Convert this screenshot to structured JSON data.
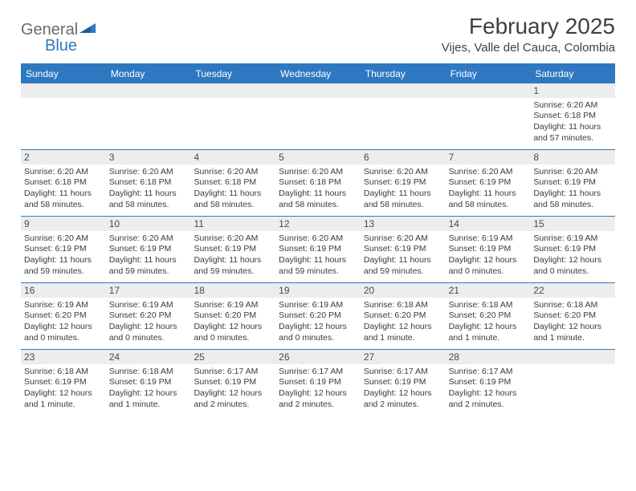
{
  "logo": {
    "word1": "General",
    "word2": "Blue"
  },
  "title": "February 2025",
  "location": "Vijes, Valle del Cauca, Colombia",
  "colors": {
    "brand_blue": "#2e78c2",
    "header_gray": "#ededed",
    "text": "#3a3a3a",
    "title_text": "#404040",
    "logo_gray": "#6b6b6b",
    "background": "#ffffff"
  },
  "typography": {
    "title_fontsize": 28,
    "location_fontsize": 15,
    "weekday_fontsize": 12,
    "daynum_fontsize": 12,
    "body_fontsize": 10.5
  },
  "weekdays": [
    "Sunday",
    "Monday",
    "Tuesday",
    "Wednesday",
    "Thursday",
    "Friday",
    "Saturday"
  ],
  "cells": [
    {
      "day": "",
      "sunrise": "",
      "sunset": "",
      "daylight": ""
    },
    {
      "day": "",
      "sunrise": "",
      "sunset": "",
      "daylight": ""
    },
    {
      "day": "",
      "sunrise": "",
      "sunset": "",
      "daylight": ""
    },
    {
      "day": "",
      "sunrise": "",
      "sunset": "",
      "daylight": ""
    },
    {
      "day": "",
      "sunrise": "",
      "sunset": "",
      "daylight": ""
    },
    {
      "day": "",
      "sunrise": "",
      "sunset": "",
      "daylight": ""
    },
    {
      "day": "1",
      "sunrise": "Sunrise: 6:20 AM",
      "sunset": "Sunset: 6:18 PM",
      "daylight": "Daylight: 11 hours and 57 minutes."
    },
    {
      "day": "2",
      "sunrise": "Sunrise: 6:20 AM",
      "sunset": "Sunset: 6:18 PM",
      "daylight": "Daylight: 11 hours and 58 minutes."
    },
    {
      "day": "3",
      "sunrise": "Sunrise: 6:20 AM",
      "sunset": "Sunset: 6:18 PM",
      "daylight": "Daylight: 11 hours and 58 minutes."
    },
    {
      "day": "4",
      "sunrise": "Sunrise: 6:20 AM",
      "sunset": "Sunset: 6:18 PM",
      "daylight": "Daylight: 11 hours and 58 minutes."
    },
    {
      "day": "5",
      "sunrise": "Sunrise: 6:20 AM",
      "sunset": "Sunset: 6:18 PM",
      "daylight": "Daylight: 11 hours and 58 minutes."
    },
    {
      "day": "6",
      "sunrise": "Sunrise: 6:20 AM",
      "sunset": "Sunset: 6:19 PM",
      "daylight": "Daylight: 11 hours and 58 minutes."
    },
    {
      "day": "7",
      "sunrise": "Sunrise: 6:20 AM",
      "sunset": "Sunset: 6:19 PM",
      "daylight": "Daylight: 11 hours and 58 minutes."
    },
    {
      "day": "8",
      "sunrise": "Sunrise: 6:20 AM",
      "sunset": "Sunset: 6:19 PM",
      "daylight": "Daylight: 11 hours and 58 minutes."
    },
    {
      "day": "9",
      "sunrise": "Sunrise: 6:20 AM",
      "sunset": "Sunset: 6:19 PM",
      "daylight": "Daylight: 11 hours and 59 minutes."
    },
    {
      "day": "10",
      "sunrise": "Sunrise: 6:20 AM",
      "sunset": "Sunset: 6:19 PM",
      "daylight": "Daylight: 11 hours and 59 minutes."
    },
    {
      "day": "11",
      "sunrise": "Sunrise: 6:20 AM",
      "sunset": "Sunset: 6:19 PM",
      "daylight": "Daylight: 11 hours and 59 minutes."
    },
    {
      "day": "12",
      "sunrise": "Sunrise: 6:20 AM",
      "sunset": "Sunset: 6:19 PM",
      "daylight": "Daylight: 11 hours and 59 minutes."
    },
    {
      "day": "13",
      "sunrise": "Sunrise: 6:20 AM",
      "sunset": "Sunset: 6:19 PM",
      "daylight": "Daylight: 11 hours and 59 minutes."
    },
    {
      "day": "14",
      "sunrise": "Sunrise: 6:19 AM",
      "sunset": "Sunset: 6:19 PM",
      "daylight": "Daylight: 12 hours and 0 minutes."
    },
    {
      "day": "15",
      "sunrise": "Sunrise: 6:19 AM",
      "sunset": "Sunset: 6:19 PM",
      "daylight": "Daylight: 12 hours and 0 minutes."
    },
    {
      "day": "16",
      "sunrise": "Sunrise: 6:19 AM",
      "sunset": "Sunset: 6:20 PM",
      "daylight": "Daylight: 12 hours and 0 minutes."
    },
    {
      "day": "17",
      "sunrise": "Sunrise: 6:19 AM",
      "sunset": "Sunset: 6:20 PM",
      "daylight": "Daylight: 12 hours and 0 minutes."
    },
    {
      "day": "18",
      "sunrise": "Sunrise: 6:19 AM",
      "sunset": "Sunset: 6:20 PM",
      "daylight": "Daylight: 12 hours and 0 minutes."
    },
    {
      "day": "19",
      "sunrise": "Sunrise: 6:19 AM",
      "sunset": "Sunset: 6:20 PM",
      "daylight": "Daylight: 12 hours and 0 minutes."
    },
    {
      "day": "20",
      "sunrise": "Sunrise: 6:18 AM",
      "sunset": "Sunset: 6:20 PM",
      "daylight": "Daylight: 12 hours and 1 minute."
    },
    {
      "day": "21",
      "sunrise": "Sunrise: 6:18 AM",
      "sunset": "Sunset: 6:20 PM",
      "daylight": "Daylight: 12 hours and 1 minute."
    },
    {
      "day": "22",
      "sunrise": "Sunrise: 6:18 AM",
      "sunset": "Sunset: 6:20 PM",
      "daylight": "Daylight: 12 hours and 1 minute."
    },
    {
      "day": "23",
      "sunrise": "Sunrise: 6:18 AM",
      "sunset": "Sunset: 6:19 PM",
      "daylight": "Daylight: 12 hours and 1 minute."
    },
    {
      "day": "24",
      "sunrise": "Sunrise: 6:18 AM",
      "sunset": "Sunset: 6:19 PM",
      "daylight": "Daylight: 12 hours and 1 minute."
    },
    {
      "day": "25",
      "sunrise": "Sunrise: 6:17 AM",
      "sunset": "Sunset: 6:19 PM",
      "daylight": "Daylight: 12 hours and 2 minutes."
    },
    {
      "day": "26",
      "sunrise": "Sunrise: 6:17 AM",
      "sunset": "Sunset: 6:19 PM",
      "daylight": "Daylight: 12 hours and 2 minutes."
    },
    {
      "day": "27",
      "sunrise": "Sunrise: 6:17 AM",
      "sunset": "Sunset: 6:19 PM",
      "daylight": "Daylight: 12 hours and 2 minutes."
    },
    {
      "day": "28",
      "sunrise": "Sunrise: 6:17 AM",
      "sunset": "Sunset: 6:19 PM",
      "daylight": "Daylight: 12 hours and 2 minutes."
    },
    {
      "day": "",
      "sunrise": "",
      "sunset": "",
      "daylight": ""
    }
  ]
}
